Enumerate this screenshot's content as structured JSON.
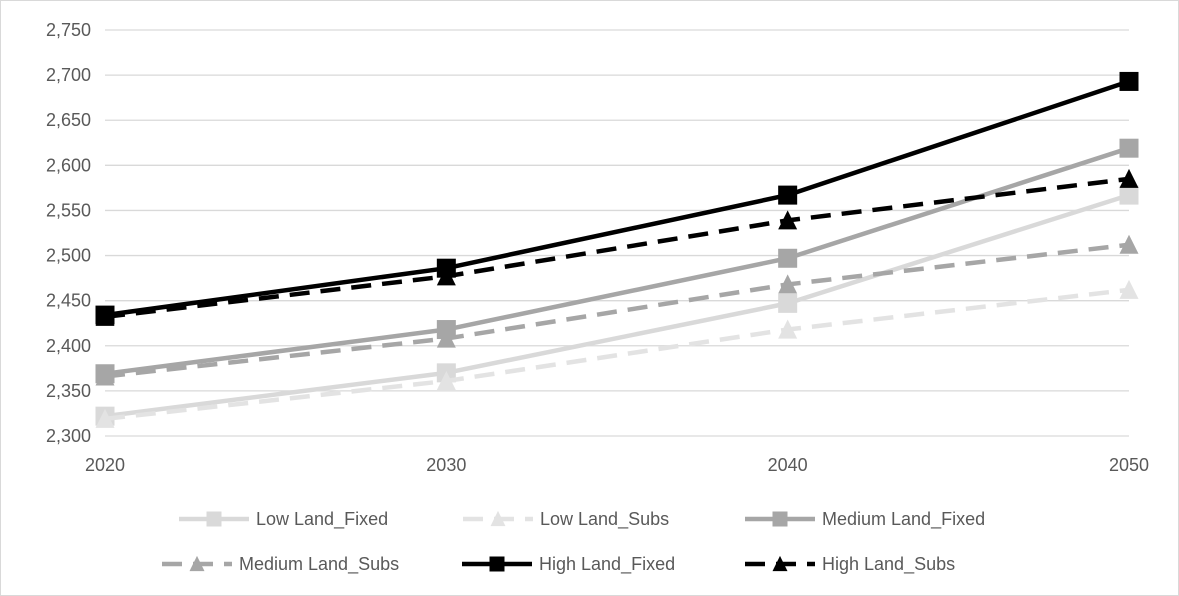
{
  "chart_data": {
    "type": "line",
    "title": "",
    "xlabel": "",
    "ylabel": "",
    "categories": [
      "2020",
      "2030",
      "2040",
      "2050"
    ],
    "ylim": [
      2300,
      2750
    ],
    "yticks": [
      "2,300",
      "2,350",
      "2,400",
      "2,450",
      "2,500",
      "2,550",
      "2,600",
      "2,650",
      "2,700",
      "2,750"
    ],
    "grid": true,
    "legend_position": "bottom",
    "series": [
      {
        "name": "Low Land_Fixed",
        "values": [
          2322,
          2370,
          2447,
          2567
        ],
        "color": "#d9d9d9",
        "dash": "solid",
        "marker": "square"
      },
      {
        "name": "Low Land_Subs",
        "values": [
          2319,
          2361,
          2418,
          2462
        ],
        "color": "#e3e3e3",
        "dash": "dashed",
        "marker": "triangle"
      },
      {
        "name": "Medium Land_Fixed",
        "values": [
          2369,
          2418,
          2497,
          2619
        ],
        "color": "#a6a6a6",
        "dash": "solid",
        "marker": "square"
      },
      {
        "name": "Medium Land_Subs",
        "values": [
          2366,
          2408,
          2468,
          2512
        ],
        "color": "#a6a6a6",
        "dash": "dashed",
        "marker": "triangle"
      },
      {
        "name": "High Land_Fixed",
        "values": [
          2434,
          2486,
          2567,
          2693
        ],
        "color": "#000000",
        "dash": "solid",
        "marker": "square"
      },
      {
        "name": "High Land_Subs",
        "values": [
          2432,
          2477,
          2539,
          2585
        ],
        "color": "#000000",
        "dash": "dashed",
        "marker": "triangle"
      }
    ]
  }
}
